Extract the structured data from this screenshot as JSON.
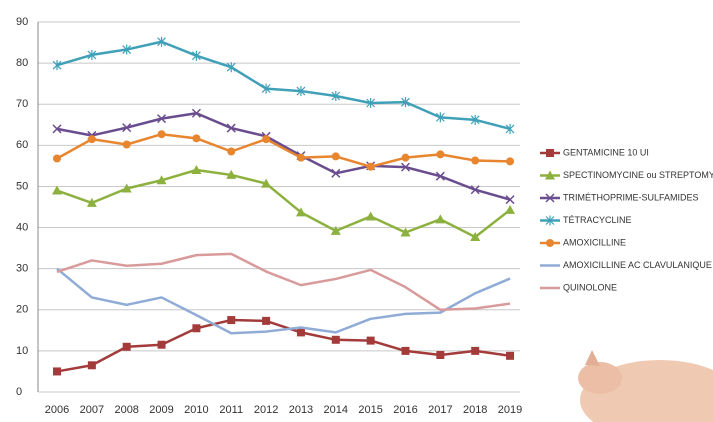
{
  "chart_data": {
    "type": "line",
    "categories": [
      "2006",
      "2007",
      "2008",
      "2009",
      "2010",
      "2011",
      "2012",
      "2013",
      "2014",
      "2015",
      "2016",
      "2017",
      "2018",
      "2019"
    ],
    "ylim": [
      0,
      90
    ],
    "yticks": [
      0,
      10,
      20,
      30,
      40,
      50,
      60,
      70,
      80,
      90
    ],
    "grid": true,
    "legend": "right",
    "series": [
      {
        "name": "GENTAMICINE 10 UI",
        "color": "#a33b3b",
        "marker": "square",
        "values": [
          5,
          6.5,
          11,
          11.5,
          15.5,
          17.5,
          17.3,
          14.5,
          12.7,
          12.5,
          10,
          9,
          10,
          8.8
        ]
      },
      {
        "name": "SPECTINOMYCINE ou STREPTOMYCINE",
        "color": "#8db13f",
        "marker": "triangle",
        "values": [
          49,
          46,
          49.5,
          51.5,
          54,
          52.8,
          50.7,
          43.7,
          39.2,
          42.7,
          38.8,
          42,
          37.7,
          44.3
        ]
      },
      {
        "name": "TRIMÉTHOPRIME-SULFAMIDES",
        "color": "#6a4d8f",
        "marker": "x",
        "values": [
          64,
          62.4,
          64.3,
          66.5,
          67.8,
          64.2,
          62.2,
          57.5,
          53.2,
          55,
          54.7,
          52.5,
          49.2,
          46.8
        ]
      },
      {
        "name": "TÉTRACYCLINE",
        "color": "#3fa0b8",
        "marker": "star",
        "values": [
          79.5,
          82,
          83.3,
          85.2,
          81.8,
          79,
          73.8,
          73.2,
          72,
          70.3,
          70.5,
          66.8,
          66.2,
          64
        ]
      },
      {
        "name": "AMOXICILLINE",
        "color": "#e8852f",
        "marker": "circle",
        "values": [
          56.8,
          61.5,
          60.2,
          62.7,
          61.7,
          58.5,
          61.5,
          57,
          57.3,
          54.8,
          57,
          57.8,
          56.3,
          56.1
        ]
      },
      {
        "name": "AMOXICILLINE AC CLAVULANIQUE",
        "color": "#8fabd6",
        "marker": "none",
        "values": [
          30,
          23,
          21.2,
          23,
          18.7,
          14.3,
          14.7,
          15.7,
          14.5,
          17.8,
          19,
          19.3,
          24,
          27.6
        ]
      },
      {
        "name": "QUINOLONE",
        "color": "#d89a9a",
        "marker": "none",
        "values": [
          29.2,
          32,
          30.7,
          31.2,
          33.3,
          33.6,
          29.3,
          26,
          27.5,
          29.7,
          25.5,
          20,
          20.3,
          21.5
        ]
      }
    ]
  }
}
